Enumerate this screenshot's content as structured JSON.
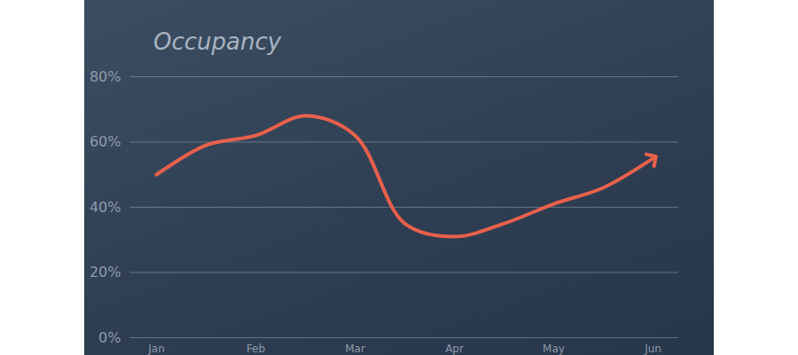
{
  "chart_data": {
    "type": "line",
    "title": "Occupancy",
    "categories": [
      "Jan",
      null,
      "Feb",
      null,
      "Mar",
      null,
      "Apr",
      null,
      "May",
      null,
      "Jun"
    ],
    "values": [
      50,
      59,
      62,
      68,
      62,
      35,
      31,
      35,
      41,
      46,
      55
    ],
    "color": "#e8604c",
    "ylim": [
      0,
      80
    ],
    "yticks": [
      {
        "value": 0,
        "label": "0%"
      },
      {
        "value": 20,
        "label": "20%"
      },
      {
        "value": 40,
        "label": "40%"
      },
      {
        "value": 60,
        "label": "60%"
      },
      {
        "value": 80,
        "label": "80%"
      }
    ],
    "grid": true,
    "marker": "arrow"
  }
}
